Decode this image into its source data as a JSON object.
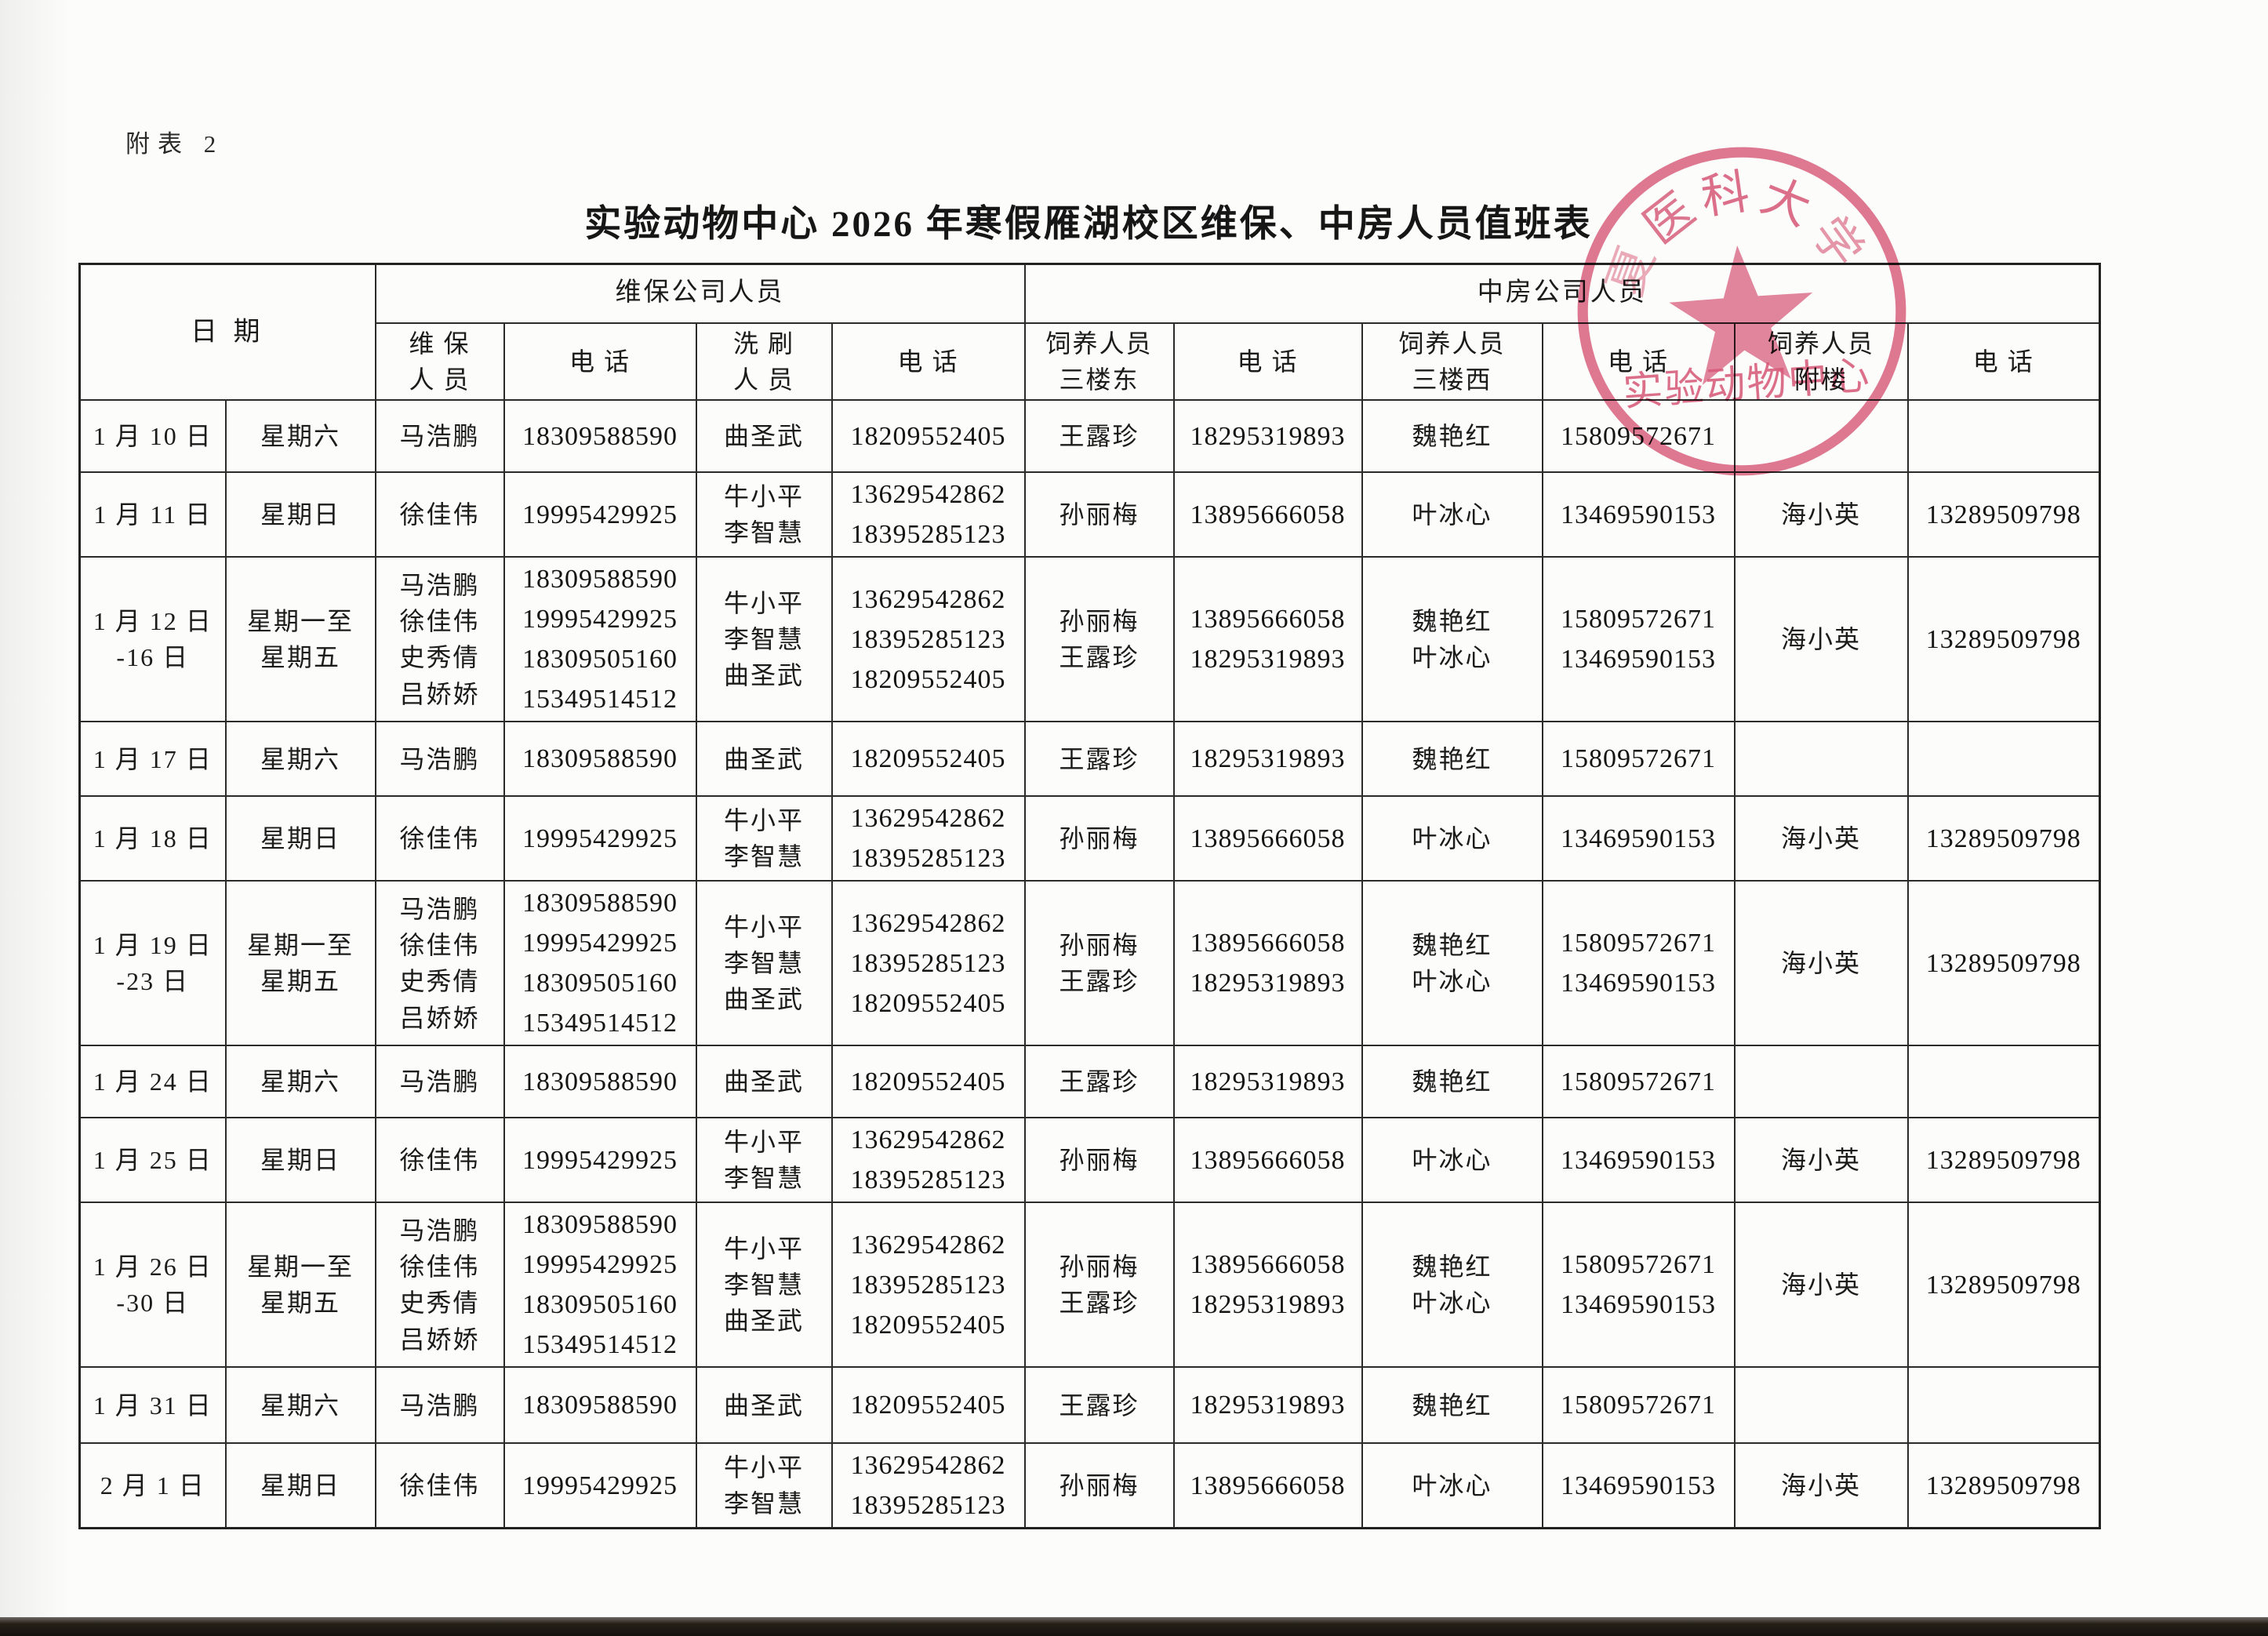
{
  "page": {
    "annex_label": "附表 2",
    "title": "实验动物中心 2026 年寒假雁湖校区维保、中房人员值班表"
  },
  "table": {
    "header": {
      "date": "日 期",
      "group_maintenance": "维保公司人员",
      "group_zhongfang": "中房公司人员",
      "sub_weibao": "维 保\n人 员",
      "sub_tel1": "电 话",
      "sub_xishua": "洗 刷\n人 员",
      "sub_tel2": "电 话",
      "sub_east": "饲养人员\n三楼东",
      "sub_tel3": "电 话",
      "sub_west": "饲养人员\n三楼西",
      "sub_tel4": "电 话",
      "sub_annex": "饲养人员\n附楼",
      "sub_tel5": "电 话"
    },
    "rows": [
      {
        "date": "1 月 10 日",
        "weekday": "星期六",
        "weibao": "马浩鹏",
        "weibao_tel": "18309588590",
        "xishua": "曲圣武",
        "xishua_tel": "18209552405",
        "east": "王露珍",
        "east_tel": "18295319893",
        "west": "魏艳红",
        "west_tel": "15809572671",
        "annex": "",
        "annex_tel": ""
      },
      {
        "date": "1 月 11 日",
        "weekday": "星期日",
        "weibao": "徐佳伟",
        "weibao_tel": "19995429925",
        "xishua": "牛小平\n李智慧",
        "xishua_tel": "13629542862\n18395285123",
        "east": "孙丽梅",
        "east_tel": "13895666058",
        "west": "叶冰心",
        "west_tel": "13469590153",
        "annex": "海小英",
        "annex_tel": "13289509798"
      },
      {
        "date": "1 月 12 日\n-16 日",
        "weekday": "星期一至\n星期五",
        "weibao": "马浩鹏\n徐佳伟\n史秀倩\n吕娇娇",
        "weibao_tel": "18309588590\n19995429925\n18309505160\n15349514512",
        "xishua": "牛小平\n李智慧\n曲圣武",
        "xishua_tel": "13629542862\n18395285123\n18209552405",
        "east": "孙丽梅\n王露珍",
        "east_tel": "13895666058\n18295319893",
        "west": "魏艳红\n叶冰心",
        "west_tel": "15809572671\n13469590153",
        "annex": "海小英",
        "annex_tel": "13289509798"
      },
      {
        "date": "1 月 17 日",
        "weekday": "星期六",
        "weibao": "马浩鹏",
        "weibao_tel": "18309588590",
        "xishua": "曲圣武",
        "xishua_tel": "18209552405",
        "east": "王露珍",
        "east_tel": "18295319893",
        "west": "魏艳红",
        "west_tel": "15809572671",
        "annex": "",
        "annex_tel": ""
      },
      {
        "date": "1 月 18 日",
        "weekday": "星期日",
        "weibao": "徐佳伟",
        "weibao_tel": "19995429925",
        "xishua": "牛小平\n李智慧",
        "xishua_tel": "13629542862\n18395285123",
        "east": "孙丽梅",
        "east_tel": "13895666058",
        "west": "叶冰心",
        "west_tel": "13469590153",
        "annex": "海小英",
        "annex_tel": "13289509798"
      },
      {
        "date": "1 月 19 日\n-23 日",
        "weekday": "星期一至\n星期五",
        "weibao": "马浩鹏\n徐佳伟\n史秀倩\n吕娇娇",
        "weibao_tel": "18309588590\n19995429925\n18309505160\n15349514512",
        "xishua": "牛小平\n李智慧\n曲圣武",
        "xishua_tel": "13629542862\n18395285123\n18209552405",
        "east": "孙丽梅\n王露珍",
        "east_tel": "13895666058\n18295319893",
        "west": "魏艳红\n叶冰心",
        "west_tel": "15809572671\n13469590153",
        "annex": "海小英",
        "annex_tel": "13289509798"
      },
      {
        "date": "1 月 24 日",
        "weekday": "星期六",
        "weibao": "马浩鹏",
        "weibao_tel": "18309588590",
        "xishua": "曲圣武",
        "xishua_tel": "18209552405",
        "east": "王露珍",
        "east_tel": "18295319893",
        "west": "魏艳红",
        "west_tel": "15809572671",
        "annex": "",
        "annex_tel": ""
      },
      {
        "date": "1 月 25 日",
        "weekday": "星期日",
        "weibao": "徐佳伟",
        "weibao_tel": "19995429925",
        "xishua": "牛小平\n李智慧",
        "xishua_tel": "13629542862\n18395285123",
        "east": "孙丽梅",
        "east_tel": "13895666058",
        "west": "叶冰心",
        "west_tel": "13469590153",
        "annex": "海小英",
        "annex_tel": "13289509798"
      },
      {
        "date": "1 月 26 日\n-30 日",
        "weekday": "星期一至\n星期五",
        "weibao": "马浩鹏\n徐佳伟\n史秀倩\n吕娇娇",
        "weibao_tel": "18309588590\n19995429925\n18309505160\n15349514512",
        "xishua": "牛小平\n李智慧\n曲圣武",
        "xishua_tel": "13629542862\n18395285123\n18209552405",
        "east": "孙丽梅\n王露珍",
        "east_tel": "13895666058\n18295319893",
        "west": "魏艳红\n叶冰心",
        "west_tel": "15809572671\n13469590153",
        "annex": "海小英",
        "annex_tel": "13289509798"
      },
      {
        "date": "1 月 31 日",
        "weekday": "星期六",
        "weibao": "马浩鹏",
        "weibao_tel": "18309588590",
        "xishua": "曲圣武",
        "xishua_tel": "18209552405",
        "east": "王露珍",
        "east_tel": "18295319893",
        "west": "魏艳红",
        "west_tel": "15809572671",
        "annex": "",
        "annex_tel": ""
      },
      {
        "date": "2 月 1 日",
        "weekday": "星期日",
        "weibao": "徐佳伟",
        "weibao_tel": "19995429925",
        "xishua": "牛小平\n李智慧",
        "xishua_tel": "13629542862\n18395285123",
        "east": "孙丽梅",
        "east_tel": "13895666058",
        "west": "叶冰心",
        "west_tel": "13469590153",
        "annex": "海小英",
        "annex_tel": "13289509798"
      }
    ]
  },
  "stamp": {
    "arc_chars": [
      "夏",
      "医",
      "科",
      "大",
      "学"
    ],
    "center_text": "实验动物中心",
    "color": "#d5496d"
  }
}
